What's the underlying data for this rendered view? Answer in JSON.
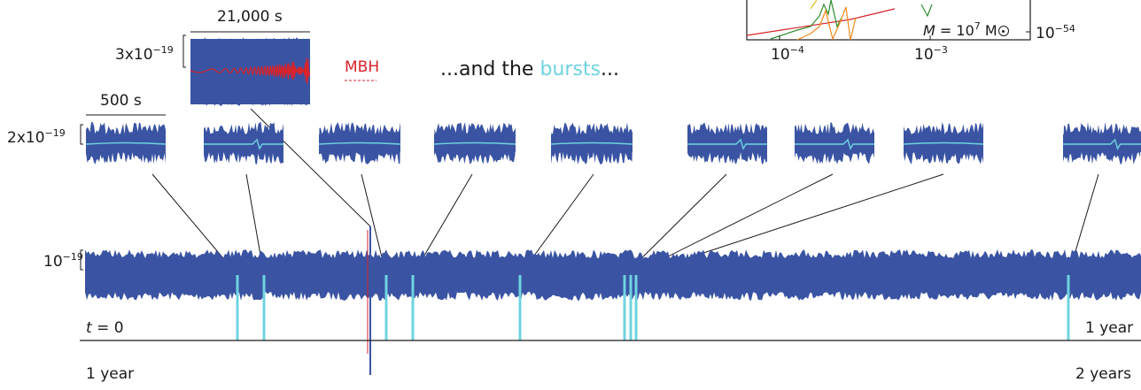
{
  "colors": {
    "noise": "#3a54a3",
    "burst": "#6fd3e0",
    "mbh": "#d8232a",
    "axis": "#1a1a1a"
  },
  "labels": {
    "dur_mbh": "21,000 s",
    "amp_mbh_base": "3x10",
    "amp_mbh_exp": "−19",
    "mbh": "MBH",
    "bursts_pre": "...and the ",
    "bursts_word": "bursts",
    "bursts_post": "...",
    "dur_burst": "500 s",
    "amp_burst_base": "2x10",
    "amp_burst_exp": "−19",
    "amp_main_base": "10",
    "amp_main_exp": "−19",
    "t_var": "t",
    "t_zero": " = 0",
    "one_year_right": "1 year",
    "one_year_left": "1 year",
    "two_years": "2 years"
  },
  "inset": {
    "xtick1_base": "10",
    "xtick1_exp": "−4",
    "xtick2_base": "10",
    "xtick2_exp": "−3",
    "ytick_base": "10",
    "ytick_exp": "−54",
    "mass_var": "M",
    "mass_eq": " = 10",
    "mass_exp": "7",
    "mass_unit": " M"
  }
}
